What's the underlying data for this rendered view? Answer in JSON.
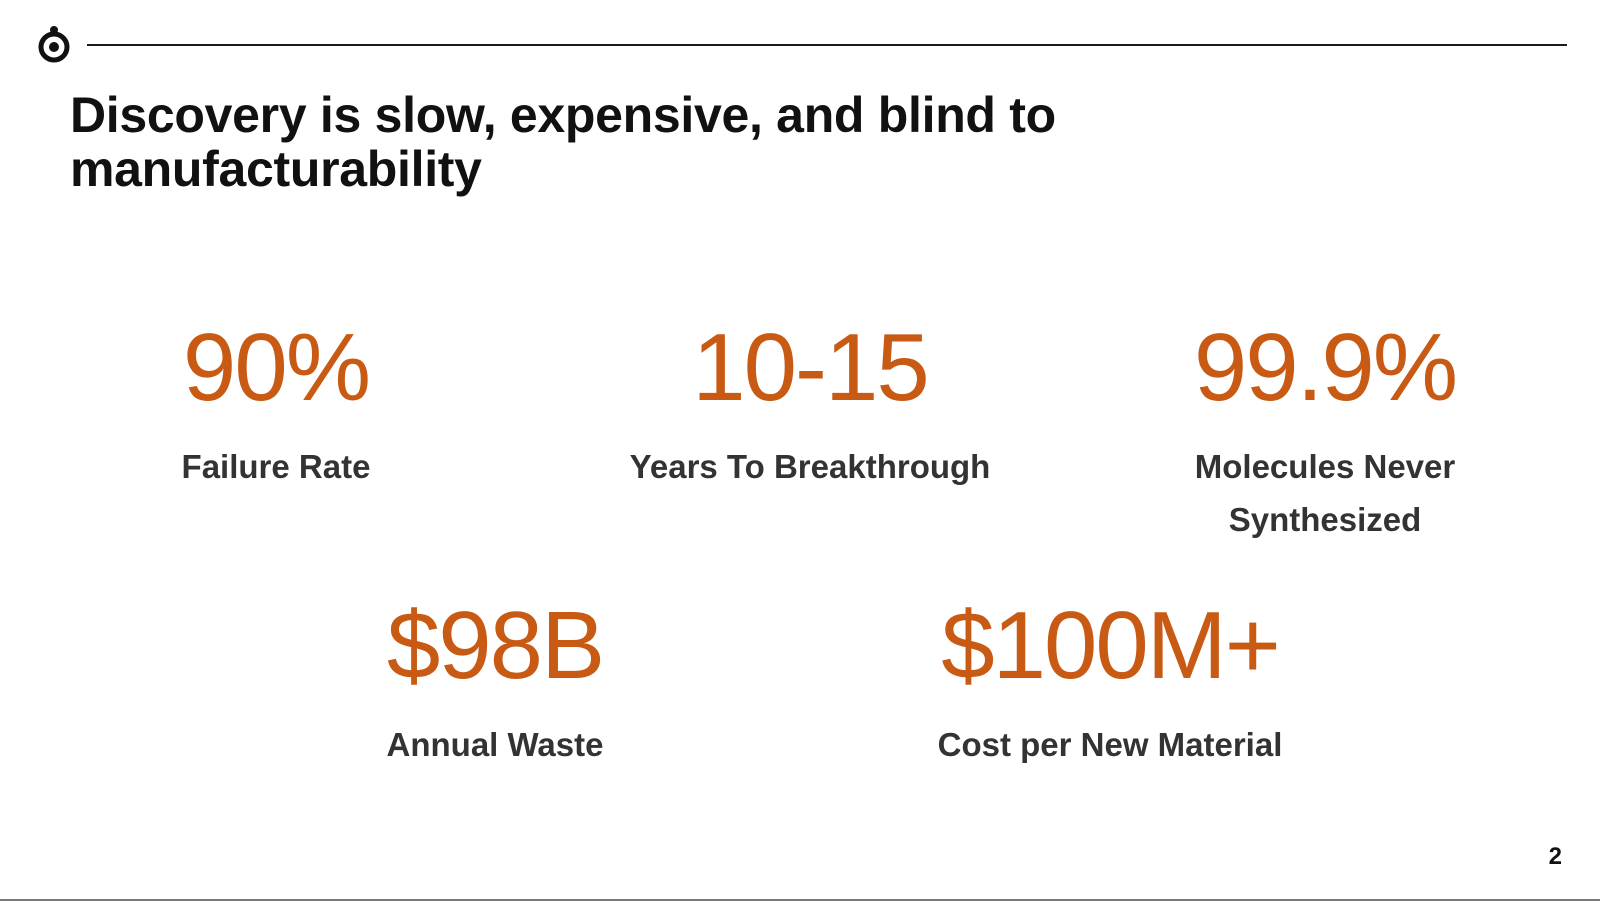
{
  "slide": {
    "title": "Discovery is slow, expensive, and blind to manufacturability",
    "page_number": "2",
    "accent_color": "#c85a14",
    "logo_icon": "circle-dot-logo-icon"
  },
  "stats": [
    {
      "value": "90%",
      "label": "Failure Rate"
    },
    {
      "value": "10-15",
      "label": "Years To Breakthrough"
    },
    {
      "value": "99.9%",
      "label": "Molecules Never Synthesized"
    },
    {
      "value": "$98B",
      "label": "Annual Waste"
    },
    {
      "value": "$100M+",
      "label": "Cost per New Material"
    }
  ]
}
